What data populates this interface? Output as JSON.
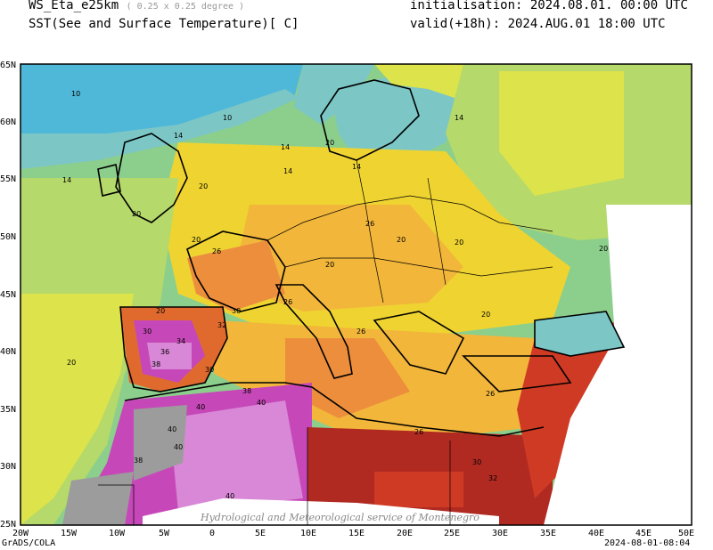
{
  "header": {
    "model": "WS_Eta_e25km",
    "resolution": "( 0.25 x 0.25 degree )",
    "field": "SST(See and Surface Temperature)[ C]",
    "init": "initialisation: 2024.08.01. 00:00 UTC",
    "valid": "valid(+18h): 2024.AUG.01 18:00 UTC"
  },
  "axes": {
    "lon_labels": [
      "20W",
      "15W",
      "10W",
      "5W",
      "0",
      "5E",
      "10E",
      "15E",
      "20E",
      "25E",
      "30E",
      "35E",
      "40E",
      "45E",
      "50E"
    ],
    "lat_labels": [
      "65N",
      "60N",
      "55N",
      "50N",
      "45N",
      "40N",
      "35N",
      "30N",
      "25N"
    ]
  },
  "contour_labels": [
    "10",
    "10",
    "14",
    "14",
    "14",
    "14",
    "14",
    "14",
    "20",
    "20",
    "20",
    "20",
    "20",
    "20",
    "20",
    "20",
    "20",
    "20",
    "20",
    "26",
    "26",
    "26",
    "26",
    "26",
    "26",
    "30",
    "30",
    "30",
    "30",
    "32",
    "32",
    "34",
    "36",
    "38",
    "38",
    "38",
    "40",
    "40",
    "40",
    "40",
    "40"
  ],
  "watermark": "Hydrological and Meteorological service of Montenegro",
  "footer": {
    "left": "GrADS/COLA",
    "right": "2024-08-01-08:04"
  },
  "colors": {
    "c10": "#4fb8d8",
    "c12": "#7cc6c6",
    "c14": "#8ccf8c",
    "c16": "#b5d96a",
    "c18": "#dde34a",
    "c20": "#efd431",
    "c22": "#f2b63a",
    "c24": "#ec8e3c",
    "c26": "#e06a2e",
    "c28": "#cf3a24",
    "c30": "#b02a22",
    "c34": "#c648b8",
    "c38": "#d888d6",
    "c40": "#9c9c9c"
  }
}
